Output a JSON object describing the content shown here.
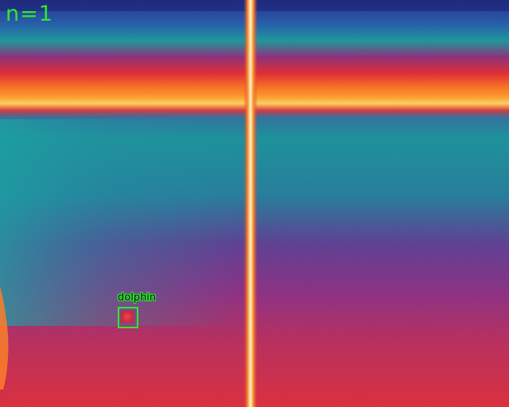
{
  "overlay": {
    "count_text": "n=1",
    "detections": [
      {
        "label": "dolphin"
      }
    ]
  },
  "colors": {
    "annotation_green": "#2ee82e",
    "thermal_deep": "#2a2f9a",
    "thermal_teal": "#168f96",
    "thermal_purple": "#7a2a86",
    "thermal_red": "#d8283a",
    "thermal_orange": "#ff7a1a",
    "thermal_hot": "#fff6b0"
  }
}
